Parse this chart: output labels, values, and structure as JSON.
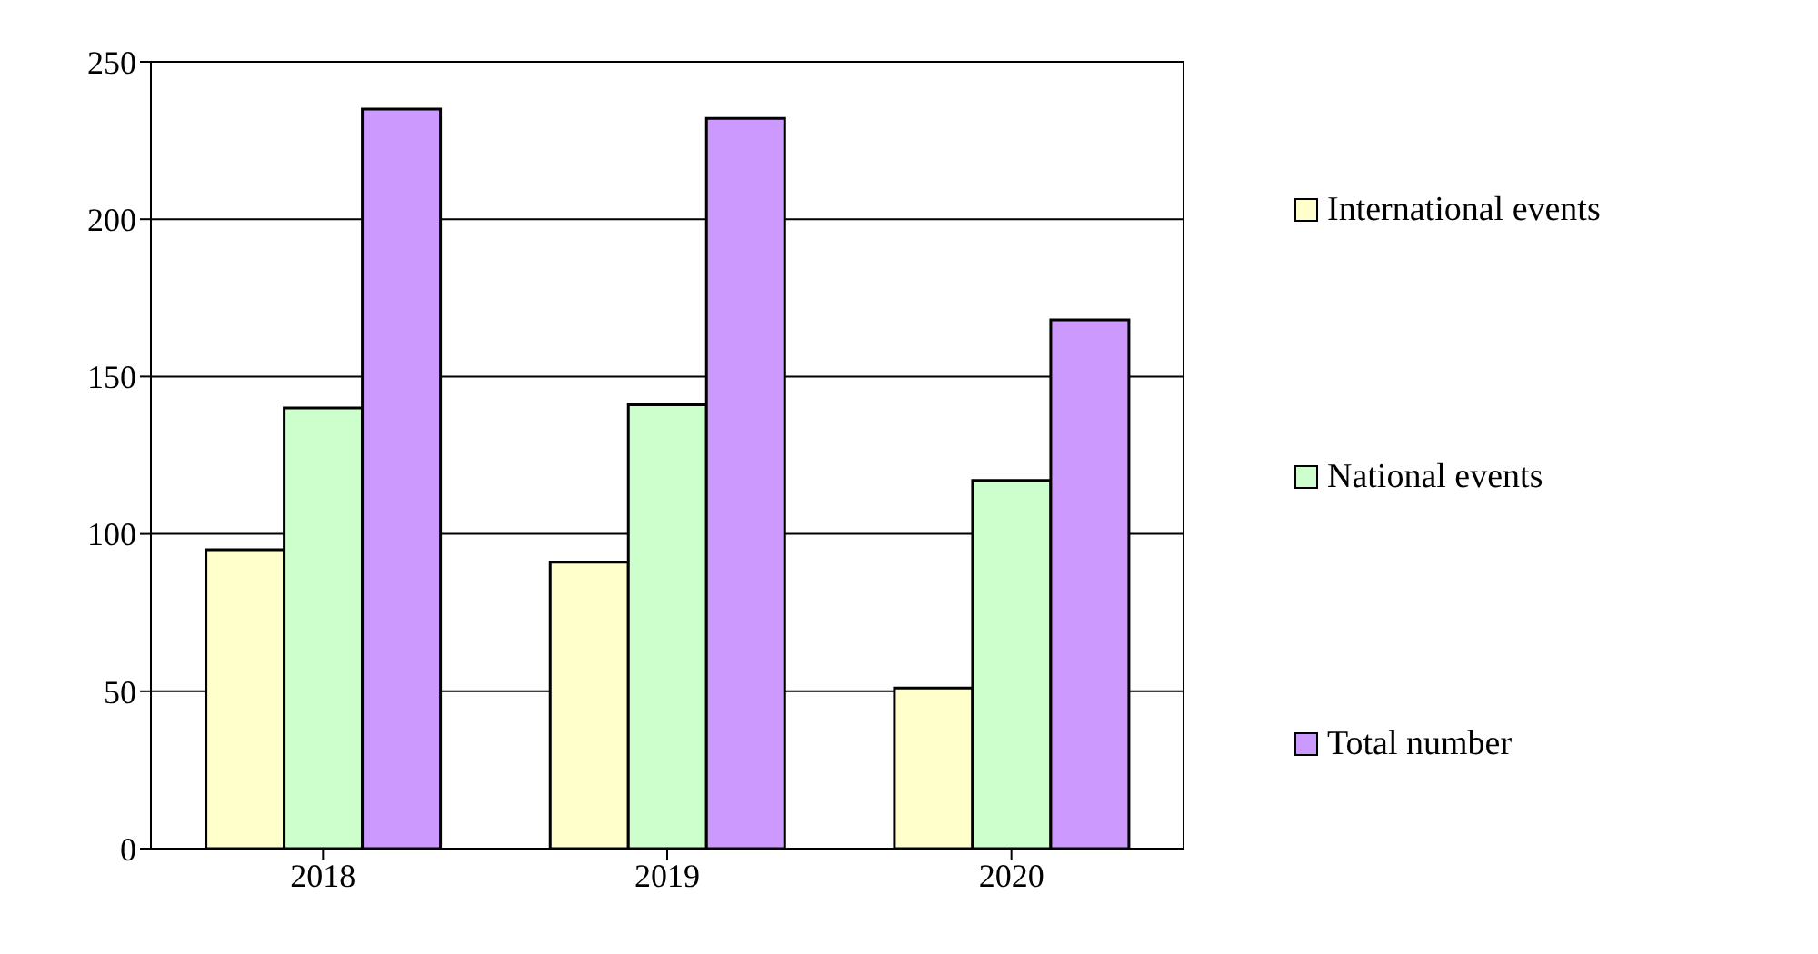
{
  "chart_data": {
    "type": "bar",
    "categories": [
      "2018",
      "2019",
      "2020"
    ],
    "series": [
      {
        "name": "International events",
        "color": "#ffffcc",
        "values": [
          95,
          91,
          51
        ]
      },
      {
        "name": "National events",
        "color": "#ccffcc",
        "values": [
          140,
          141,
          117
        ]
      },
      {
        "name": "Total number",
        "color": "#cc99ff",
        "values": [
          235,
          232,
          168
        ]
      }
    ],
    "ylim": [
      0,
      250
    ],
    "yticks": [
      0,
      50,
      100,
      150,
      200,
      250
    ],
    "grid": "y",
    "legend": "right"
  }
}
